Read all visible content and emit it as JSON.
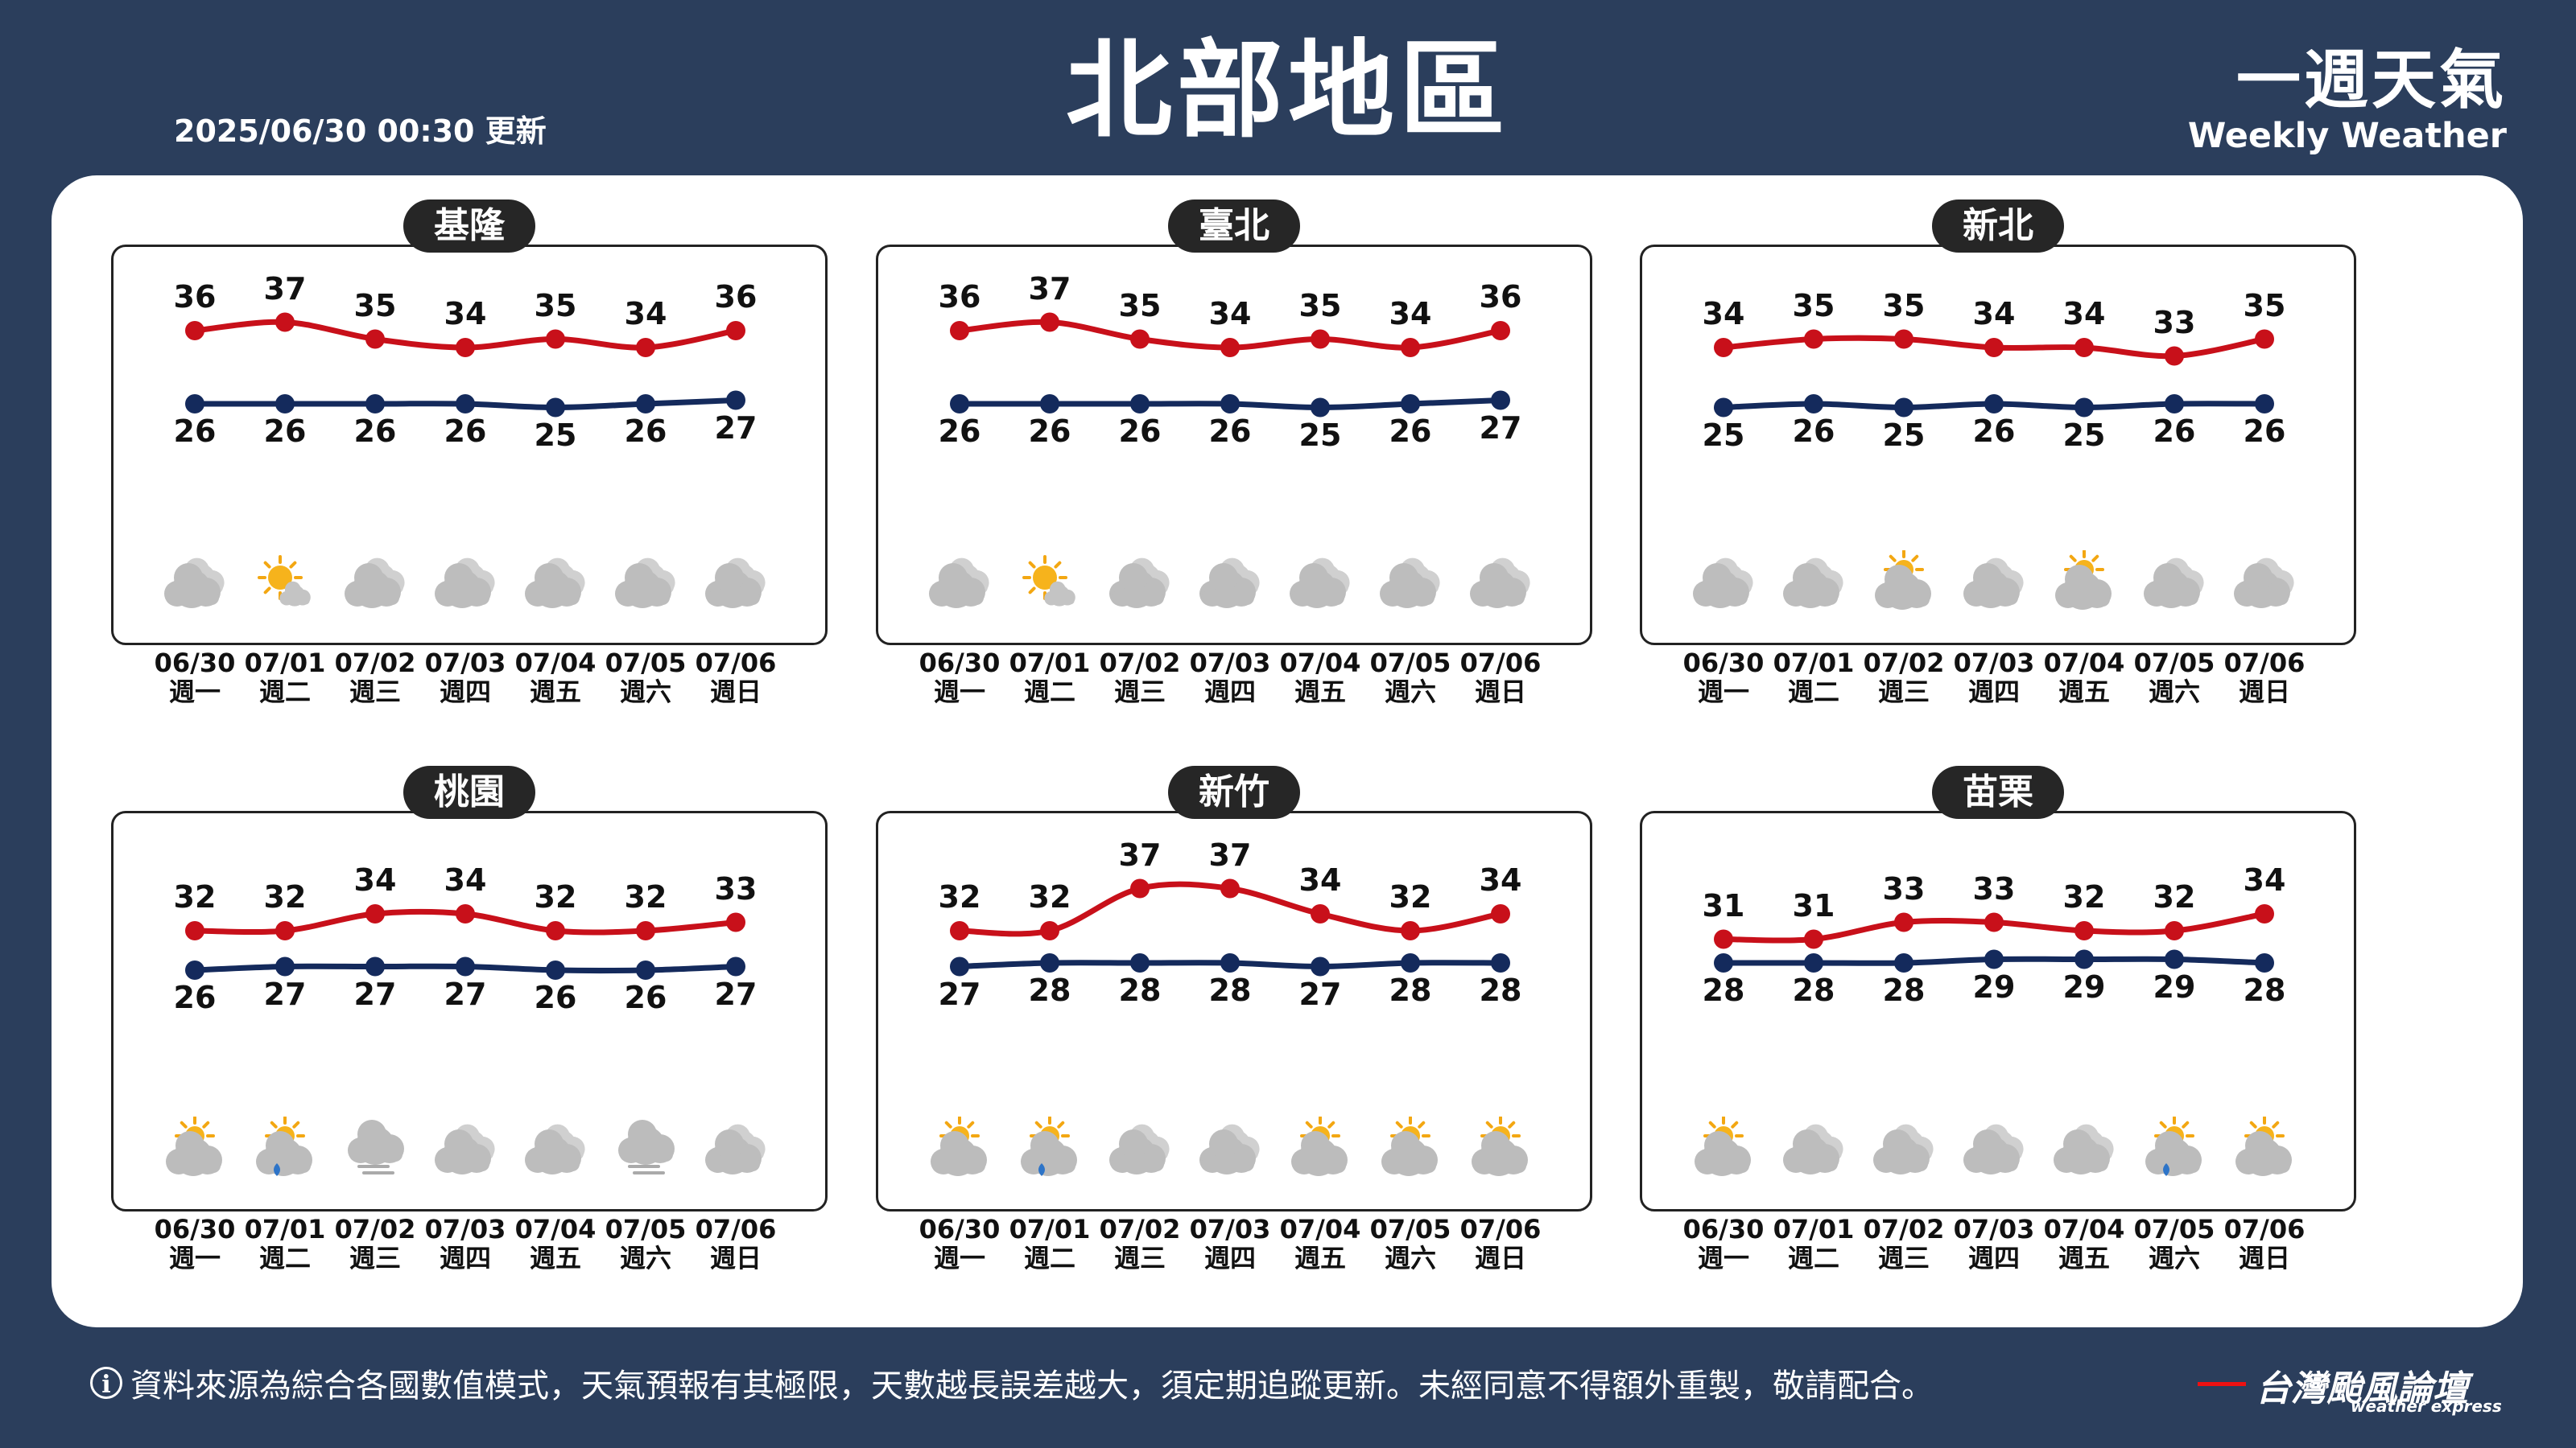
{
  "header": {
    "title": "北部地區",
    "updated": "2025/06/30 00:30 更新",
    "brand_zh": "一週天氣",
    "brand_en": "Weekly Weather"
  },
  "colors": {
    "high": "#c8101a",
    "low": "#142a5c",
    "background": "#2b3e5c"
  },
  "dates": [
    "06/30",
    "07/01",
    "07/02",
    "07/03",
    "07/04",
    "07/05",
    "07/06"
  ],
  "weekdays": [
    "週一",
    "週二",
    "週三",
    "週四",
    "週五",
    "週六",
    "週日"
  ],
  "regions": [
    {
      "name": "基隆",
      "high": [
        36,
        37,
        35,
        34,
        35,
        34,
        36
      ],
      "low": [
        26,
        26,
        26,
        26,
        25,
        26,
        27
      ],
      "icons": [
        "cloudy",
        "sunny-cloudy",
        "cloudy",
        "cloudy",
        "cloudy",
        "cloudy",
        "cloudy"
      ]
    },
    {
      "name": "臺北",
      "high": [
        36,
        37,
        35,
        34,
        35,
        34,
        36
      ],
      "low": [
        26,
        26,
        26,
        26,
        25,
        26,
        27
      ],
      "icons": [
        "cloudy",
        "sunny-cloudy",
        "cloudy",
        "cloudy",
        "cloudy",
        "cloudy",
        "cloudy"
      ]
    },
    {
      "name": "新北",
      "high": [
        34,
        35,
        35,
        34,
        34,
        33,
        35
      ],
      "low": [
        25,
        26,
        25,
        26,
        25,
        26,
        26
      ],
      "icons": [
        "cloudy",
        "cloudy",
        "partly-cloudy",
        "cloudy",
        "partly-cloudy",
        "cloudy",
        "cloudy"
      ]
    },
    {
      "name": "桃園",
      "high": [
        32,
        32,
        34,
        34,
        32,
        32,
        33
      ],
      "low": [
        26,
        27,
        27,
        27,
        26,
        26,
        27
      ],
      "icons": [
        "partly-cloudy",
        "partly-cloudy-rain",
        "cloudy-fog",
        "cloudy",
        "cloudy",
        "cloudy-fog",
        "cloudy"
      ]
    },
    {
      "name": "新竹",
      "high": [
        32,
        32,
        37,
        37,
        34,
        32,
        34
      ],
      "low": [
        27,
        28,
        28,
        28,
        27,
        28,
        28
      ],
      "icons": [
        "partly-cloudy",
        "partly-cloudy-rain",
        "cloudy",
        "cloudy",
        "partly-cloudy",
        "partly-cloudy",
        "partly-cloudy"
      ]
    },
    {
      "name": "苗栗",
      "high": [
        31,
        31,
        33,
        33,
        32,
        32,
        34
      ],
      "low": [
        28,
        28,
        28,
        29,
        29,
        29,
        28
      ],
      "icons": [
        "partly-cloudy",
        "cloudy",
        "cloudy",
        "cloudy",
        "cloudy",
        "partly-cloudy-rain",
        "partly-cloudy"
      ]
    }
  ],
  "footer": {
    "info_icon": "i",
    "disclaimer": "資料來源為綜合各國數值模式，天氣預報有其極限，天數越長誤差越大，須定期追蹤更新。未經同意不得額外重製，敬請配合。",
    "logo_zh": "台灣颱風論壇",
    "logo_en": "weather express"
  }
}
